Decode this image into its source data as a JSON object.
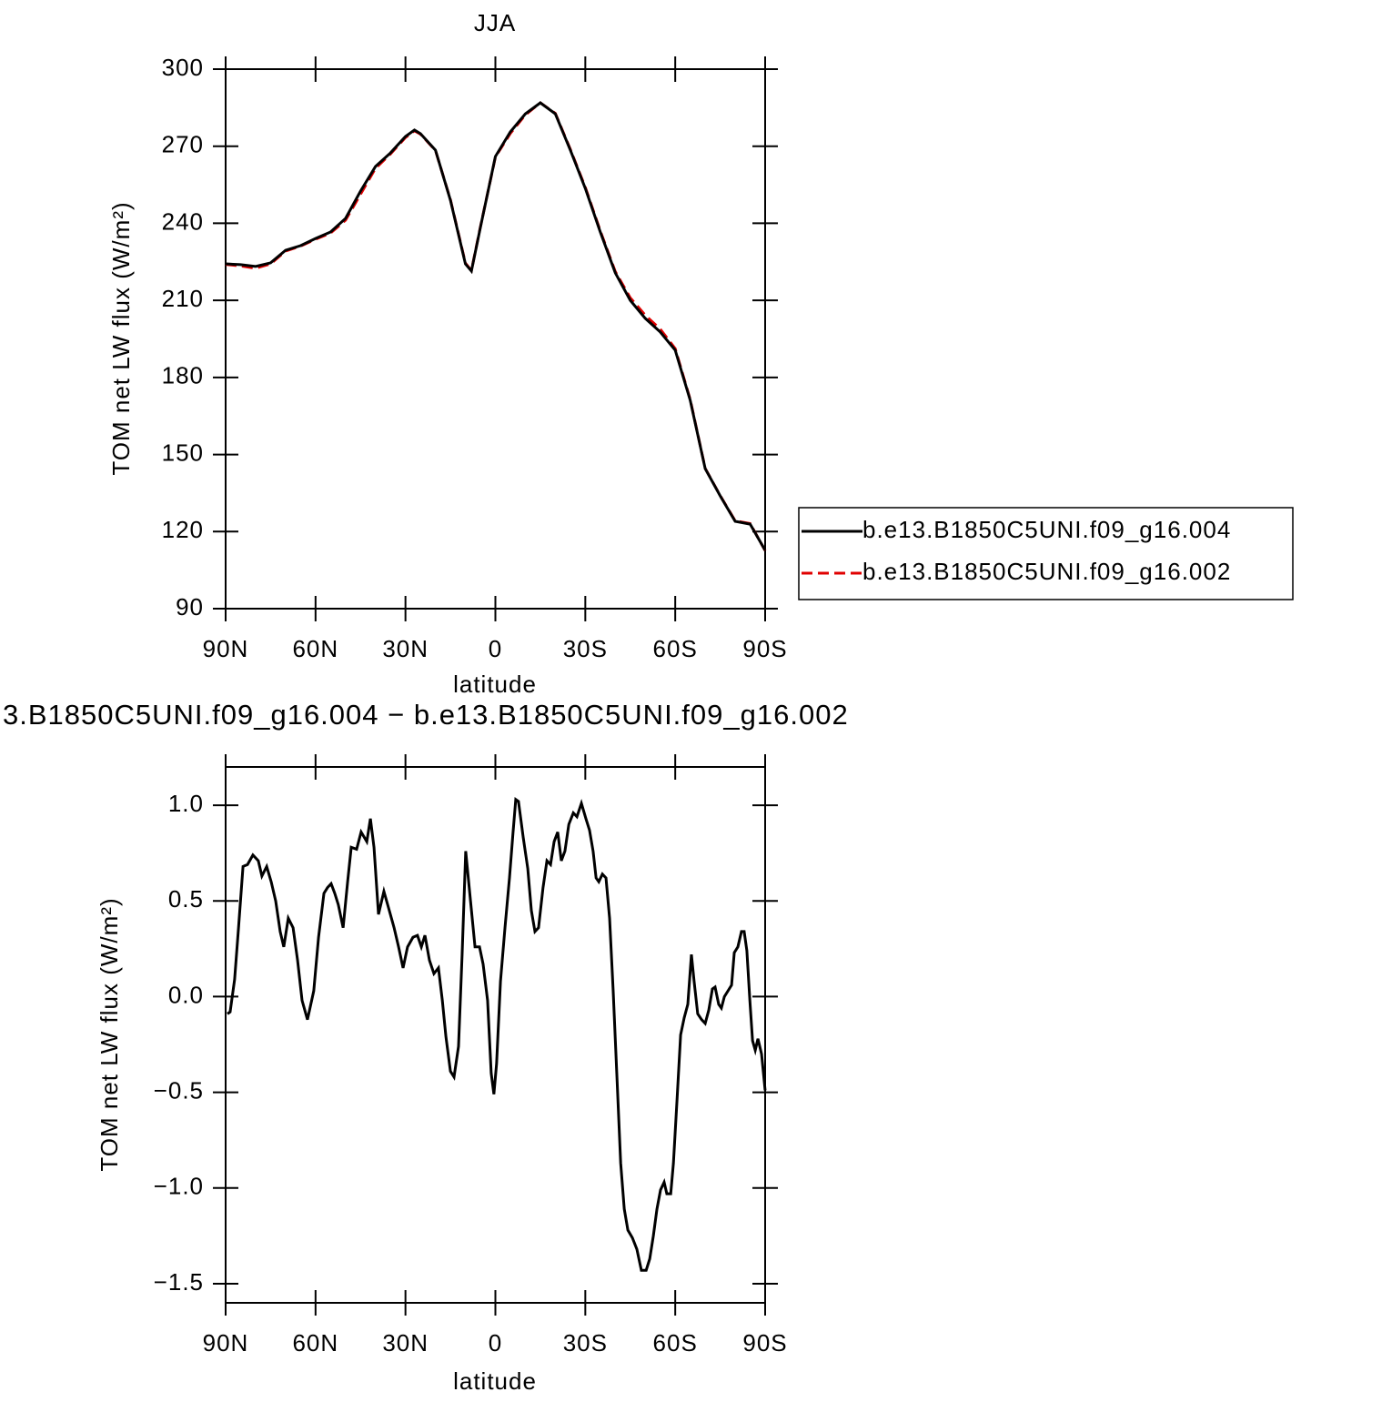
{
  "chart_data": [
    {
      "type": "line",
      "title": "JJA",
      "xlabel": "latitude",
      "ylabel": "TOM net LW flux (W/m²)",
      "xlim": [
        90,
        -90
      ],
      "ylim": [
        90,
        300
      ],
      "xticks": [
        {
          "value": 90,
          "label": "90N"
        },
        {
          "value": 60,
          "label": "60N"
        },
        {
          "value": 30,
          "label": "30N"
        },
        0,
        {
          "value": -30,
          "label": "30S"
        },
        {
          "value": -60,
          "label": "60S"
        },
        {
          "value": -90,
          "label": "90S"
        }
      ],
      "yticks": [
        90,
        120,
        150,
        180,
        210,
        240,
        270,
        300
      ],
      "legend": "right",
      "x": [
        90,
        85,
        80,
        75,
        70,
        65,
        60,
        55,
        50,
        45,
        40,
        35,
        30,
        27,
        25,
        20,
        15,
        10,
        8,
        5,
        0,
        -5,
        -10,
        -15,
        -20,
        -25,
        -30,
        -35,
        -40,
        -45,
        -50,
        -55,
        -60,
        -65,
        -70,
        -75,
        -80,
        -85,
        -90
      ],
      "series": [
        {
          "name": "b.e13.B1850C5UNI.f09_g16.002",
          "color": "#e00000",
          "line_style": "dashed",
          "values": [
            224.0,
            223.4,
            222.5,
            224.2,
            229.2,
            231.1,
            233.8,
            236.2,
            241.2,
            251.3,
            261.4,
            267.0,
            273.4,
            276.0,
            274.7,
            268.4,
            249.2,
            224.5,
            221.6,
            238.6,
            265.8,
            275.0,
            282.2,
            286.9,
            282.8,
            268.8,
            254.0,
            237.0,
            221.2,
            211.0,
            204.2,
            198.8,
            191.2,
            171.4,
            144.6,
            134.0,
            124.2,
            123.1,
            112.6
          ]
        },
        {
          "name": "b.e13.B1850C5UNI.f09_g16.004",
          "color": "#000000",
          "line_style": "solid",
          "values": [
            224.2,
            223.9,
            223.2,
            224.6,
            229.5,
            231.3,
            234.1,
            236.6,
            241.9,
            252.5,
            262.1,
            267.4,
            273.8,
            276.3,
            274.9,
            268.5,
            249.0,
            224.2,
            221.4,
            238.4,
            266.0,
            275.6,
            282.6,
            286.9,
            282.6,
            268.5,
            253.6,
            236.6,
            220.7,
            210.0,
            203.0,
            197.7,
            190.6,
            171.1,
            144.5,
            133.9,
            124.0,
            122.9,
            112.7
          ]
        }
      ]
    },
    {
      "type": "line",
      "title": "3.B1850C5UNI.f09_g16.004 − b.e13.B1850C5UNI.f09_g16.002",
      "xlabel": "latitude",
      "ylabel": "TOM net LW flux (W/m²)",
      "xlim": [
        90,
        -90
      ],
      "ylim": [
        -1.6,
        1.2
      ],
      "xticks": [
        {
          "value": 90,
          "label": "90N"
        },
        {
          "value": 60,
          "label": "60N"
        },
        {
          "value": 30,
          "label": "30N"
        },
        0,
        {
          "value": -30,
          "label": "30S"
        },
        {
          "value": -60,
          "label": "60S"
        },
        {
          "value": -90,
          "label": "90S"
        }
      ],
      "yticks": [
        {
          "value": -1.5,
          "label": "−1.5"
        },
        {
          "value": -1.0,
          "label": "−1.0"
        },
        {
          "value": -0.5,
          "label": "−0.5"
        },
        {
          "value": 0.0,
          "label": "0.0"
        },
        0.5,
        {
          "value": 1.0,
          "label": "1.0"
        }
      ],
      "x": [
        89.4,
        88.5,
        87,
        85.7,
        84.2,
        82.7,
        80.9,
        79.1,
        77.9,
        76.3,
        74.8,
        73.3,
        71.8,
        70.6,
        69.1,
        67.5,
        66,
        64.5,
        62.7,
        60.6,
        59,
        57.2,
        56,
        54.8,
        53.6,
        52.4,
        50.8,
        49.3,
        48.1,
        46.3,
        44.8,
        42.9,
        41.7,
        40.5,
        39,
        37.2,
        35.4,
        33.8,
        32.3,
        30.8,
        29.3,
        27.5,
        26,
        24.7,
        23.5,
        22,
        20.5,
        19,
        17.7,
        16.5,
        15,
        13.8,
        12.3,
        11.1,
        9.9,
        8.3,
        6.8,
        5.3,
        4.1,
        2.6,
        1.4,
        0.5,
        -0.4,
        -1.7,
        -3.2,
        -4.7,
        -5.9,
        -6.8,
        -7.7,
        -9.3,
        -10.8,
        -12,
        -13.2,
        -14.4,
        -15.9,
        -17.2,
        -18.4,
        -19.6,
        -20.8,
        -22,
        -23.2,
        -24.5,
        -26,
        -27.2,
        -28.7,
        -30.2,
        -31.4,
        -32.6,
        -33.6,
        -34.5,
        -35.7,
        -36.9,
        -38.1,
        -39.3,
        -40.5,
        -41.8,
        -43,
        -44.2,
        -45.7,
        -47.2,
        -48.7,
        -50.3,
        -51.5,
        -52.7,
        -53.9,
        -55.1,
        -56.3,
        -57.2,
        -58.5,
        -59.4,
        -60.6,
        -61.8,
        -63,
        -64.2,
        -65.4,
        -66.3,
        -67.5,
        -68.8,
        -70,
        -71.2,
        -72.4,
        -73.3,
        -74.5,
        -75.4,
        -76.4,
        -77.6,
        -78.8,
        -79.7,
        -80.9,
        -82.1,
        -83,
        -83.9,
        -84.9,
        -85.8,
        -86.7,
        -87.6,
        -88.8,
        -90
      ],
      "series": [
        {
          "color": "#000000",
          "line_style": "solid",
          "values": [
            -0.09,
            -0.08,
            0.09,
            0.36,
            0.68,
            0.69,
            0.74,
            0.71,
            0.63,
            0.68,
            0.6,
            0.5,
            0.34,
            0.26,
            0.41,
            0.36,
            0.19,
            -0.02,
            -0.12,
            0.03,
            0.31,
            0.54,
            0.57,
            0.59,
            0.54,
            0.48,
            0.36,
            0.6,
            0.78,
            0.77,
            0.86,
            0.81,
            0.93,
            0.78,
            0.43,
            0.55,
            0.45,
            0.36,
            0.26,
            0.15,
            0.26,
            0.31,
            0.32,
            0.26,
            0.32,
            0.19,
            0.12,
            0.15,
            -0.02,
            -0.21,
            -0.39,
            -0.42,
            -0.26,
            0.22,
            0.76,
            0.5,
            0.26,
            0.26,
            0.17,
            -0.02,
            -0.4,
            -0.51,
            -0.35,
            0.08,
            0.36,
            0.62,
            0.86,
            1.03,
            1.02,
            0.83,
            0.67,
            0.45,
            0.34,
            0.36,
            0.57,
            0.71,
            0.69,
            0.81,
            0.86,
            0.71,
            0.76,
            0.9,
            0.96,
            0.94,
            1.01,
            0.93,
            0.87,
            0.76,
            0.62,
            0.6,
            0.64,
            0.62,
            0.41,
            0.03,
            -0.4,
            -0.87,
            -1.11,
            -1.22,
            -1.26,
            -1.32,
            -1.43,
            -1.43,
            -1.37,
            -1.25,
            -1.11,
            -1.01,
            -0.97,
            -1.03,
            -1.03,
            -0.87,
            -0.54,
            -0.2,
            -0.11,
            -0.04,
            0.22,
            0.08,
            -0.09,
            -0.12,
            -0.14,
            -0.07,
            0.04,
            0.05,
            -0.04,
            -0.06,
            0.0,
            0.03,
            0.06,
            0.23,
            0.26,
            0.34,
            0.34,
            0.24,
            -0.02,
            -0.23,
            -0.28,
            -0.22,
            -0.3,
            -0.49
          ]
        }
      ]
    }
  ]
}
